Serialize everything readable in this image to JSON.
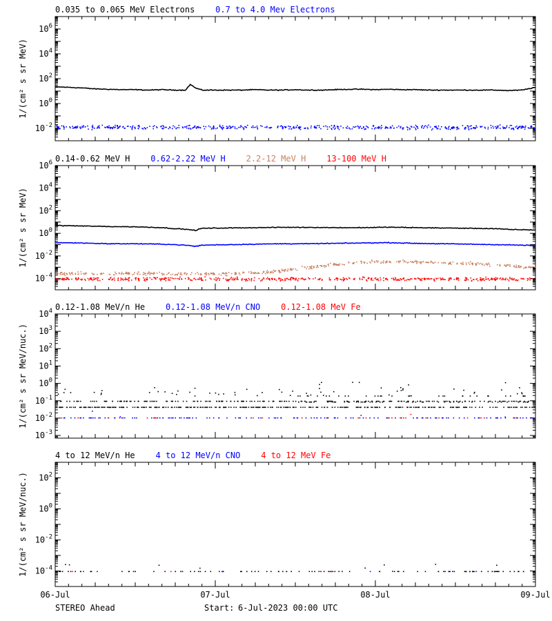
{
  "footer": {
    "spacecraft": "STEREO Ahead",
    "start_label": "Start:",
    "start_value": "6-Jul-2023 00:00 UTC"
  },
  "colors": {
    "black": "#000000",
    "blue": "#0000ff",
    "tan": "#c88060",
    "red": "#ff0000"
  },
  "chart_data": [
    {
      "type": "scatter",
      "scale": "log",
      "ylabel": "1/(cm² s sr MeV)",
      "ylim": [
        0.001,
        10000000
      ],
      "ytick_exponents": [
        -2,
        0,
        2,
        4,
        6
      ],
      "x_range_hours": [
        0,
        72
      ],
      "legend": [
        {
          "label": "0.035 to 0.065 MeV Electrons",
          "color": "#000000"
        },
        {
          "label": "0.7 to 4.0 Mev Electrons",
          "color": "#0000ff"
        }
      ],
      "series": [
        {
          "name": "0.035 to 0.065 MeV Electrons",
          "color": "#000000",
          "style": "line",
          "points": [
            [
              0,
              22
            ],
            [
              2,
              20
            ],
            [
              4,
              18
            ],
            [
              6,
              15
            ],
            [
              8,
              14
            ],
            [
              10,
              13
            ],
            [
              12,
              13
            ],
            [
              14,
              12
            ],
            [
              16,
              13
            ],
            [
              18,
              12
            ],
            [
              19.5,
              12
            ],
            [
              20.3,
              35
            ],
            [
              21,
              18
            ],
            [
              22,
              12
            ],
            [
              24,
              12
            ],
            [
              26,
              12
            ],
            [
              28,
              12
            ],
            [
              30,
              13
            ],
            [
              32,
              12
            ],
            [
              34,
              12
            ],
            [
              36,
              13
            ],
            [
              38,
              12
            ],
            [
              40,
              12
            ],
            [
              42,
              13
            ],
            [
              44,
              14
            ],
            [
              46,
              14
            ],
            [
              48,
              13
            ],
            [
              50,
              14
            ],
            [
              52,
              13
            ],
            [
              54,
              13
            ],
            [
              56,
              12
            ],
            [
              58,
              12
            ],
            [
              60,
              12
            ],
            [
              62,
              12
            ],
            [
              64,
              12
            ],
            [
              66,
              12
            ],
            [
              68,
              11
            ],
            [
              70,
              12
            ],
            [
              72,
              20
            ]
          ]
        },
        {
          "name": "0.7 to 4.0 Mev Electrons",
          "color": "#0000ff",
          "style": "dots",
          "base": 0.013,
          "spread_dex": 0.25,
          "count": 520
        }
      ]
    },
    {
      "type": "scatter",
      "scale": "log",
      "ylabel": "1/(cm² s sr MeV)",
      "ylim": [
        1e-05,
        1000000
      ],
      "ytick_exponents": [
        -4,
        -2,
        0,
        2,
        4,
        6
      ],
      "x_range_hours": [
        0,
        72
      ],
      "legend": [
        {
          "label": "0.14-0.62 MeV H",
          "color": "#000000"
        },
        {
          "label": "0.62-2.22 MeV H",
          "color": "#0000ff"
        },
        {
          "label": "2.2-12 MeV H",
          "color": "#c88060"
        },
        {
          "label": "13-100 MeV H",
          "color": "#ff0000"
        }
      ],
      "series": [
        {
          "name": "0.14-0.62 MeV H",
          "color": "#000000",
          "style": "line",
          "points": [
            [
              0,
              5
            ],
            [
              4,
              4.5
            ],
            [
              8,
              4
            ],
            [
              12,
              3.8
            ],
            [
              16,
              3.2
            ],
            [
              18,
              2.6
            ],
            [
              20,
              2.2
            ],
            [
              21,
              1.8
            ],
            [
              22,
              2.8
            ],
            [
              26,
              3
            ],
            [
              30,
              3.2
            ],
            [
              34,
              3.4
            ],
            [
              38,
              3.4
            ],
            [
              42,
              3.2
            ],
            [
              46,
              3.2
            ],
            [
              50,
              3.5
            ],
            [
              54,
              3.2
            ],
            [
              58,
              3
            ],
            [
              62,
              2.8
            ],
            [
              66,
              2.6
            ],
            [
              68,
              2.2
            ],
            [
              72,
              2
            ]
          ]
        },
        {
          "name": "0.62-2.22 MeV H",
          "color": "#0000ff",
          "style": "line",
          "points": [
            [
              0,
              0.15
            ],
            [
              4,
              0.14
            ],
            [
              8,
              0.12
            ],
            [
              12,
              0.12
            ],
            [
              16,
              0.11
            ],
            [
              18,
              0.1
            ],
            [
              20,
              0.085
            ],
            [
              21,
              0.07
            ],
            [
              22,
              0.09
            ],
            [
              26,
              0.1
            ],
            [
              30,
              0.11
            ],
            [
              34,
              0.12
            ],
            [
              38,
              0.12
            ],
            [
              42,
              0.13
            ],
            [
              46,
              0.14
            ],
            [
              50,
              0.15
            ],
            [
              54,
              0.13
            ],
            [
              58,
              0.12
            ],
            [
              62,
              0.11
            ],
            [
              66,
              0.1
            ],
            [
              70,
              0.09
            ],
            [
              72,
              0.08
            ]
          ]
        },
        {
          "name": "2.2-12 MeV H",
          "color": "#c88060",
          "style": "dots-curve",
          "spread_dex": 0.2,
          "count": 480,
          "points": [
            [
              0,
              0.0003
            ],
            [
              16,
              0.0003
            ],
            [
              26,
              0.0003
            ],
            [
              32,
              0.0004
            ],
            [
              36,
              0.0008
            ],
            [
              40,
              0.0015
            ],
            [
              44,
              0.0025
            ],
            [
              48,
              0.0035
            ],
            [
              52,
              0.0035
            ],
            [
              56,
              0.003
            ],
            [
              60,
              0.0025
            ],
            [
              64,
              0.002
            ],
            [
              68,
              0.0015
            ],
            [
              72,
              0.001
            ]
          ]
        },
        {
          "name": "13-100 MeV H",
          "color": "#ff0000",
          "style": "dots",
          "base": 0.0001,
          "spread_dex": 0.22,
          "count": 520
        }
      ]
    },
    {
      "type": "scatter",
      "scale": "log",
      "ylabel": "1/(cm² s sr MeV/nuc.)",
      "ylim": [
        0.0007,
        10000
      ],
      "ytick_exponents": [
        -3,
        -2,
        -1,
        0,
        1,
        2,
        3,
        4
      ],
      "x_range_hours": [
        0,
        72
      ],
      "legend": [
        {
          "label": "0.12-1.08 MeV/n He",
          "color": "#000000"
        },
        {
          "label": "0.12-1.08 MeV/n CNO",
          "color": "#0000ff"
        },
        {
          "label": "0.12-1.08 MeV Fe",
          "color": "#ff0000"
        }
      ],
      "series": [
        {
          "name": "0.12-1.08 MeV/n He",
          "color": "#000000",
          "style": "levels",
          "levels": [
            0.045,
            0.1,
            0.2
          ],
          "count": 700
        },
        {
          "name": "0.12-1.08 MeV/n CNO",
          "color": "#0000ff",
          "style": "sparse",
          "base": 0.011,
          "count": 140
        },
        {
          "name": "0.12-1.08 MeV Fe",
          "color": "#ff0000",
          "style": "sparse",
          "base": 0.011,
          "count": 30
        }
      ]
    },
    {
      "type": "scatter",
      "scale": "log",
      "ylabel": "1/(cm² s sr MeV/nuc.)",
      "ylim": [
        1e-05,
        1000
      ],
      "ytick_exponents": [
        -4,
        -2,
        0,
        2
      ],
      "x_range_hours": [
        0,
        72
      ],
      "xticks": [
        "06-Jul",
        "07-Jul",
        "08-Jul",
        "09-Jul"
      ],
      "legend": [
        {
          "label": "4 to 12 MeV/n He",
          "color": "#000000"
        },
        {
          "label": "4 to 12 MeV/n CNO",
          "color": "#0000ff"
        },
        {
          "label": "4 to 12 MeV Fe",
          "color": "#ff0000"
        }
      ],
      "series": [
        {
          "name": "4 to 12 MeV/n He",
          "color": "#000000",
          "style": "sparse",
          "base": 0.0001,
          "count": 110
        },
        {
          "name": "4 to 12 MeV/n CNO",
          "color": "#0000ff",
          "style": "sparse",
          "base": 0.0001,
          "count": 6
        },
        {
          "name": "4 to 12 MeV Fe",
          "color": "#ff0000",
          "style": "sparse",
          "base": 0.0001,
          "count": 3
        }
      ]
    }
  ]
}
